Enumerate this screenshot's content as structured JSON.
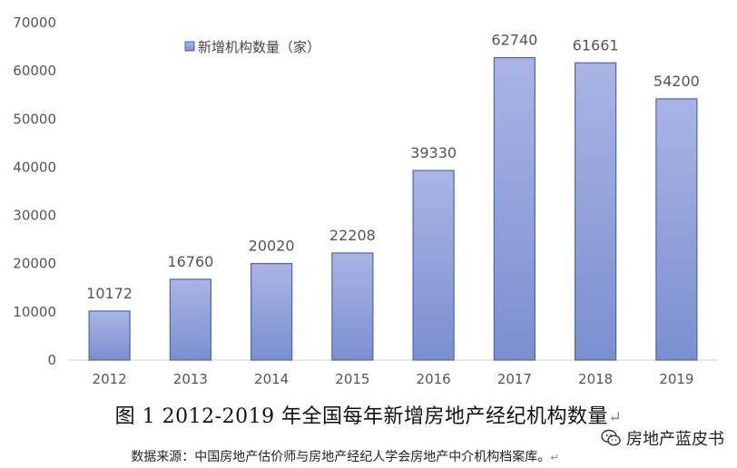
{
  "chart_data": {
    "type": "bar",
    "categories": [
      "2012",
      "2013",
      "2014",
      "2015",
      "2016",
      "2017",
      "2018",
      "2019"
    ],
    "values": [
      10172,
      16760,
      20020,
      22208,
      39330,
      62740,
      61661,
      54200
    ],
    "series_name": "新增机构数量（家）",
    "ylim": [
      0,
      70000
    ],
    "yticks": [
      0,
      10000,
      20000,
      30000,
      40000,
      50000,
      60000,
      70000
    ],
    "legend_position": "top-left",
    "grid": false,
    "colors": {
      "bar_top": "#aab4e4",
      "bar_bottom": "#7b8fd0",
      "bar_stroke": "#4a66b4"
    }
  },
  "caption": "图 1  2012-2019 年全国每年新增房地产经纪机构数量",
  "source": "数据来源：中国房地产估价师与房地产经纪人学会房地产中介机构档案库。",
  "return_mark": "↵",
  "watermark": {
    "text": "房地产蓝皮书",
    "icon": "wechat-icon"
  }
}
